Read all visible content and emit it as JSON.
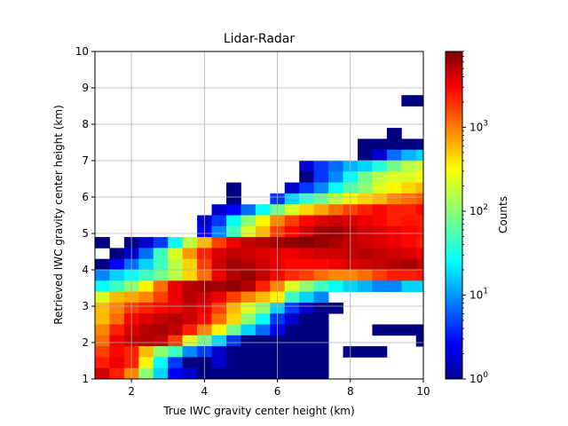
{
  "chart_data": {
    "type": "heatmap",
    "title": "Lidar-Radar",
    "xlabel": "True IWC gravity center height (km)",
    "ylabel": "Retrieved IWC gravity center height (km)",
    "xlim": [
      1,
      10
    ],
    "ylim": [
      1,
      10
    ],
    "x_ticks": [
      "2",
      "4",
      "6",
      "8",
      "10"
    ],
    "x_tick_values": [
      2,
      4,
      6,
      8,
      10
    ],
    "y_ticks": [
      "1",
      "2",
      "3",
      "4",
      "5",
      "6",
      "7",
      "8",
      "9",
      "10"
    ],
    "y_tick_values": [
      1,
      2,
      3,
      4,
      5,
      6,
      7,
      8,
      9,
      10
    ],
    "grid": true,
    "x_bin_edges_start": 1,
    "bin_width": 0.4,
    "y_bin_edges_start": 1,
    "bin_height": 0.3,
    "colormap": "jet",
    "color_scale": "log",
    "color_range": [
      1,
      8000
    ],
    "colorbar": {
      "label": "Counts",
      "tick_labels": [
        "10^0",
        "10^1",
        "10^2",
        "10^3"
      ],
      "tick_values": [
        1,
        10,
        100,
        1000
      ]
    },
    "counts_rows_top_to_bottom": [
      [
        0,
        0,
        0,
        0,
        0,
        0,
        0,
        0,
        0,
        0,
        0,
        0,
        0,
        0,
        0,
        0,
        0,
        0,
        0,
        0,
        0,
        0,
        0
      ],
      [
        0,
        0,
        0,
        0,
        0,
        0,
        0,
        0,
        0,
        0,
        0,
        0,
        0,
        0,
        0,
        0,
        0,
        0,
        0,
        0,
        0,
        0,
        0
      ],
      [
        0,
        0,
        0,
        0,
        0,
        0,
        0,
        0,
        0,
        0,
        0,
        0,
        0,
        0,
        0,
        0,
        0,
        0,
        0,
        0,
        0,
        0,
        0
      ],
      [
        0,
        0,
        0,
        0,
        0,
        0,
        0,
        0,
        0,
        0,
        0,
        0,
        0,
        0,
        0,
        0,
        0,
        0,
        0,
        0,
        0,
        0,
        0
      ],
      [
        0,
        0,
        0,
        0,
        0,
        0,
        0,
        0,
        0,
        0,
        0,
        0,
        0,
        0,
        0,
        0,
        0,
        0,
        0,
        0,
        0,
        0,
        0
      ],
      [
        0,
        0,
        0,
        0,
        0,
        0,
        0,
        0,
        0,
        0,
        0,
        0,
        0,
        0,
        0,
        0,
        0,
        0,
        0,
        0,
        0,
        1,
        1
      ],
      [
        0,
        0,
        0,
        0,
        0,
        0,
        0,
        0,
        0,
        0,
        0,
        0,
        0,
        0,
        0,
        0,
        0,
        0,
        0,
        0,
        0,
        0,
        0
      ],
      [
        0,
        0,
        0,
        0,
        0,
        0,
        0,
        0,
        0,
        0,
        0,
        0,
        0,
        0,
        0,
        0,
        0,
        0,
        0,
        0,
        0,
        0,
        0
      ],
      [
        0,
        0,
        0,
        0,
        0,
        0,
        0,
        0,
        0,
        0,
        0,
        0,
        0,
        0,
        0,
        0,
        0,
        0,
        0,
        0,
        1,
        0,
        0
      ],
      [
        0,
        0,
        0,
        0,
        0,
        0,
        0,
        0,
        0,
        0,
        0,
        0,
        0,
        0,
        0,
        0,
        0,
        0,
        1,
        1,
        1,
        1,
        1
      ],
      [
        0,
        0,
        0,
        0,
        0,
        0,
        0,
        0,
        0,
        0,
        0,
        0,
        0,
        0,
        0,
        0,
        0,
        0,
        1,
        2,
        8,
        15,
        20
      ],
      [
        0,
        0,
        0,
        0,
        0,
        0,
        0,
        0,
        0,
        0,
        0,
        0,
        0,
        0,
        2,
        5,
        8,
        15,
        20,
        40,
        80,
        150,
        180
      ],
      [
        0,
        0,
        0,
        0,
        0,
        0,
        0,
        0,
        0,
        0,
        0,
        0,
        0,
        0,
        1,
        5,
        10,
        30,
        80,
        150,
        200,
        200,
        250
      ],
      [
        0,
        0,
        0,
        0,
        0,
        0,
        0,
        0,
        0,
        1,
        0,
        0,
        0,
        2,
        5,
        10,
        30,
        60,
        100,
        200,
        300,
        400,
        500
      ],
      [
        0,
        0,
        0,
        0,
        0,
        0,
        0,
        0,
        0,
        1,
        0,
        0,
        5,
        20,
        50,
        80,
        150,
        300,
        400,
        500,
        800,
        1000,
        1200
      ],
      [
        0,
        0,
        0,
        0,
        0,
        0,
        0,
        0,
        2,
        3,
        8,
        30,
        80,
        200,
        400,
        600,
        1000,
        1500,
        2000,
        2500,
        2000,
        2000,
        2500
      ],
      [
        0,
        0,
        0,
        0,
        0,
        0,
        0,
        2,
        5,
        30,
        100,
        300,
        800,
        1500,
        2500,
        3500,
        4000,
        3500,
        3000,
        2500,
        2000,
        2200,
        2000
      ],
      [
        0,
        0,
        0,
        0,
        0,
        0,
        0,
        3,
        10,
        50,
        200,
        500,
        1500,
        2500,
        4000,
        6000,
        6500,
        5000,
        4000,
        3500,
        3000,
        2500,
        2200
      ],
      [
        1,
        0,
        1,
        2,
        5,
        30,
        150,
        500,
        1500,
        3000,
        4500,
        5000,
        6000,
        7000,
        7500,
        6500,
        5500,
        4500,
        4000,
        3500,
        3000,
        2500,
        2000
      ],
      [
        0,
        1,
        2,
        8,
        50,
        200,
        700,
        2000,
        3500,
        4500,
        4000,
        3500,
        3000,
        3000,
        3500,
        4000,
        4000,
        4500,
        5000,
        4500,
        4000,
        3500,
        3000
      ],
      [
        1,
        3,
        8,
        20,
        50,
        150,
        400,
        1500,
        4000,
        6000,
        5000,
        4000,
        3000,
        2500,
        2500,
        2500,
        3000,
        3500,
        4000,
        4500,
        5000,
        5500,
        4500
      ],
      [
        10,
        20,
        30,
        50,
        80,
        150,
        400,
        1000,
        3000,
        5000,
        6500,
        4500,
        2500,
        1800,
        1500,
        1000,
        800,
        800,
        1000,
        1500,
        2000,
        2000,
        2200
      ],
      [
        30,
        50,
        100,
        300,
        1000,
        3000,
        5000,
        6000,
        6000,
        7000,
        5000,
        2000,
        800,
        200,
        100,
        50,
        30,
        20,
        15,
        10,
        10,
        20,
        20
      ],
      [
        200,
        500,
        600,
        800,
        1500,
        3000,
        5000,
        4000,
        3000,
        1500,
        800,
        500,
        300,
        50,
        20,
        10,
        0,
        0,
        0,
        0,
        0,
        0,
        0
      ],
      [
        500,
        800,
        1500,
        2000,
        2500,
        3000,
        4000,
        3000,
        1500,
        500,
        200,
        100,
        20,
        5,
        2,
        1,
        1,
        0,
        0,
        0,
        0,
        0,
        0
      ],
      [
        500,
        1000,
        2500,
        3500,
        4500,
        5000,
        4000,
        2500,
        1000,
        400,
        100,
        30,
        5,
        2,
        1,
        1,
        0,
        0,
        0,
        0,
        0,
        0,
        0
      ],
      [
        800,
        2000,
        3500,
        5000,
        5500,
        4500,
        2000,
        800,
        300,
        80,
        20,
        8,
        3,
        1,
        1,
        1,
        0,
        0,
        0,
        1,
        1,
        1,
        1
      ],
      [
        1000,
        3000,
        4500,
        5000,
        4500,
        1500,
        200,
        80,
        20,
        5,
        1,
        1,
        1,
        1,
        1,
        1,
        0,
        0,
        0,
        0,
        0,
        0,
        1
      ],
      [
        1500,
        2500,
        2000,
        500,
        100,
        50,
        10,
        5,
        2,
        1,
        1,
        1,
        1,
        1,
        1,
        1,
        0,
        1,
        1,
        1,
        0,
        0,
        0
      ],
      [
        2000,
        3000,
        2000,
        300,
        30,
        5,
        1,
        1,
        2,
        1,
        1,
        1,
        1,
        1,
        1,
        1,
        0,
        0,
        0,
        0,
        0,
        0,
        0
      ],
      [
        4000,
        2000,
        800,
        100,
        20,
        3,
        2,
        1,
        1,
        1,
        1,
        1,
        1,
        1,
        1,
        1,
        0,
        0,
        0,
        0,
        0,
        0,
        0
      ]
    ]
  }
}
